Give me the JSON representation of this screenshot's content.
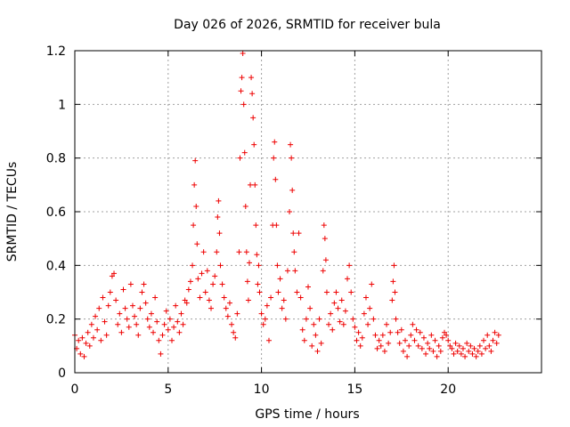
{
  "chart_data": {
    "type": "scatter",
    "title": "Day 026 of 2026, SRMTID for receiver bula",
    "xlabel": "GPS time / hours",
    "ylabel": "SRMTID / TECUs",
    "xlim": [
      0,
      25
    ],
    "ylim": [
      0,
      1.2
    ],
    "xticks": [
      0,
      5,
      10,
      15,
      20
    ],
    "xtick_labels": [
      "0",
      "5",
      "10",
      "15",
      "20"
    ],
    "yticks": [
      0,
      0.2,
      0.4,
      0.6,
      0.8,
      1.0,
      1.2
    ],
    "ytick_labels": [
      "0",
      "0.2",
      "0.4",
      "0.6",
      "0.8",
      "1",
      "1.2"
    ],
    "grid": true,
    "marker": "+",
    "series": [
      {
        "name": "SRMTID",
        "color": "#ee0000",
        "points": [
          [
            0.0,
            0.14
          ],
          [
            0.1,
            0.09
          ],
          [
            0.2,
            0.12
          ],
          [
            0.3,
            0.07
          ],
          [
            0.4,
            0.13
          ],
          [
            0.5,
            0.06
          ],
          [
            0.6,
            0.11
          ],
          [
            0.7,
            0.15
          ],
          [
            0.8,
            0.1
          ],
          [
            0.9,
            0.18
          ],
          [
            1.0,
            0.13
          ],
          [
            1.1,
            0.21
          ],
          [
            1.2,
            0.16
          ],
          [
            1.3,
            0.24
          ],
          [
            1.4,
            0.12
          ],
          [
            1.5,
            0.28
          ],
          [
            1.6,
            0.19
          ],
          [
            1.7,
            0.14
          ],
          [
            1.8,
            0.25
          ],
          [
            1.9,
            0.3
          ],
          [
            2.0,
            0.36
          ],
          [
            2.1,
            0.37
          ],
          [
            2.2,
            0.27
          ],
          [
            2.3,
            0.18
          ],
          [
            2.4,
            0.22
          ],
          [
            2.5,
            0.15
          ],
          [
            2.6,
            0.31
          ],
          [
            2.7,
            0.24
          ],
          [
            2.8,
            0.2
          ],
          [
            2.9,
            0.17
          ],
          [
            3.0,
            0.33
          ],
          [
            3.1,
            0.25
          ],
          [
            3.2,
            0.21
          ],
          [
            3.3,
            0.18
          ],
          [
            3.4,
            0.14
          ],
          [
            3.5,
            0.24
          ],
          [
            3.6,
            0.3
          ],
          [
            3.7,
            0.33
          ],
          [
            3.8,
            0.26
          ],
          [
            3.9,
            0.2
          ],
          [
            4.0,
            0.17
          ],
          [
            4.1,
            0.22
          ],
          [
            4.2,
            0.15
          ],
          [
            4.3,
            0.28
          ],
          [
            4.4,
            0.19
          ],
          [
            4.5,
            0.12
          ],
          [
            4.6,
            0.07
          ],
          [
            4.7,
            0.14
          ],
          [
            4.8,
            0.18
          ],
          [
            4.9,
            0.23
          ],
          [
            5.0,
            0.16
          ],
          [
            5.1,
            0.2
          ],
          [
            5.2,
            0.12
          ],
          [
            5.3,
            0.17
          ],
          [
            5.4,
            0.25
          ],
          [
            5.5,
            0.19
          ],
          [
            5.6,
            0.15
          ],
          [
            5.7,
            0.22
          ],
          [
            5.8,
            0.18
          ],
          [
            5.9,
            0.27
          ],
          [
            6.0,
            0.26
          ],
          [
            6.1,
            0.31
          ],
          [
            6.2,
            0.34
          ],
          [
            6.3,
            0.4
          ],
          [
            6.35,
            0.55
          ],
          [
            6.4,
            0.7
          ],
          [
            6.45,
            0.79
          ],
          [
            6.5,
            0.62
          ],
          [
            6.55,
            0.48
          ],
          [
            6.6,
            0.35
          ],
          [
            6.7,
            0.28
          ],
          [
            6.8,
            0.37
          ],
          [
            6.9,
            0.45
          ],
          [
            7.0,
            0.3
          ],
          [
            7.1,
            0.38
          ],
          [
            7.2,
            0.27
          ],
          [
            7.3,
            0.24
          ],
          [
            7.4,
            0.33
          ],
          [
            7.5,
            0.36
          ],
          [
            7.6,
            0.45
          ],
          [
            7.65,
            0.58
          ],
          [
            7.7,
            0.64
          ],
          [
            7.75,
            0.52
          ],
          [
            7.8,
            0.4
          ],
          [
            7.9,
            0.33
          ],
          [
            8.0,
            0.28
          ],
          [
            8.1,
            0.24
          ],
          [
            8.2,
            0.21
          ],
          [
            8.3,
            0.26
          ],
          [
            8.4,
            0.18
          ],
          [
            8.5,
            0.15
          ],
          [
            8.6,
            0.13
          ],
          [
            8.7,
            0.22
          ],
          [
            8.8,
            0.45
          ],
          [
            8.85,
            0.8
          ],
          [
            8.9,
            1.05
          ],
          [
            8.95,
            1.1
          ],
          [
            9.0,
            1.19
          ],
          [
            9.05,
            1.0
          ],
          [
            9.1,
            0.82
          ],
          [
            9.15,
            0.62
          ],
          [
            9.2,
            0.45
          ],
          [
            9.25,
            0.34
          ],
          [
            9.3,
            0.27
          ],
          [
            9.35,
            0.41
          ],
          [
            9.4,
            0.7
          ],
          [
            9.45,
            1.1
          ],
          [
            9.5,
            1.04
          ],
          [
            9.55,
            0.95
          ],
          [
            9.6,
            0.85
          ],
          [
            9.65,
            0.7
          ],
          [
            9.7,
            0.55
          ],
          [
            9.75,
            0.44
          ],
          [
            9.8,
            0.33
          ],
          [
            9.85,
            0.4
          ],
          [
            9.9,
            0.3
          ],
          [
            10.0,
            0.22
          ],
          [
            10.1,
            0.18
          ],
          [
            10.2,
            0.2
          ],
          [
            10.3,
            0.25
          ],
          [
            10.4,
            0.12
          ],
          [
            10.5,
            0.28
          ],
          [
            10.6,
            0.55
          ],
          [
            10.65,
            0.8
          ],
          [
            10.7,
            0.86
          ],
          [
            10.75,
            0.72
          ],
          [
            10.8,
            0.55
          ],
          [
            10.85,
            0.4
          ],
          [
            10.9,
            0.3
          ],
          [
            11.0,
            0.35
          ],
          [
            11.1,
            0.24
          ],
          [
            11.2,
            0.27
          ],
          [
            11.3,
            0.2
          ],
          [
            11.4,
            0.38
          ],
          [
            11.5,
            0.6
          ],
          [
            11.55,
            0.85
          ],
          [
            11.6,
            0.8
          ],
          [
            11.65,
            0.68
          ],
          [
            11.7,
            0.52
          ],
          [
            11.75,
            0.45
          ],
          [
            11.8,
            0.38
          ],
          [
            11.9,
            0.3
          ],
          [
            12.0,
            0.52
          ],
          [
            12.1,
            0.28
          ],
          [
            12.2,
            0.16
          ],
          [
            12.3,
            0.12
          ],
          [
            12.4,
            0.2
          ],
          [
            12.5,
            0.32
          ],
          [
            12.6,
            0.24
          ],
          [
            12.7,
            0.1
          ],
          [
            12.8,
            0.18
          ],
          [
            12.9,
            0.14
          ],
          [
            13.0,
            0.08
          ],
          [
            13.1,
            0.2
          ],
          [
            13.2,
            0.11
          ],
          [
            13.3,
            0.38
          ],
          [
            13.35,
            0.55
          ],
          [
            13.4,
            0.5
          ],
          [
            13.45,
            0.42
          ],
          [
            13.5,
            0.3
          ],
          [
            13.6,
            0.18
          ],
          [
            13.7,
            0.22
          ],
          [
            13.8,
            0.16
          ],
          [
            13.9,
            0.26
          ],
          [
            14.0,
            0.3
          ],
          [
            14.1,
            0.24
          ],
          [
            14.2,
            0.19
          ],
          [
            14.3,
            0.27
          ],
          [
            14.4,
            0.18
          ],
          [
            14.5,
            0.23
          ],
          [
            14.6,
            0.35
          ],
          [
            14.7,
            0.4
          ],
          [
            14.8,
            0.3
          ],
          [
            14.9,
            0.2
          ],
          [
            15.0,
            0.17
          ],
          [
            15.1,
            0.12
          ],
          [
            15.2,
            0.15
          ],
          [
            15.3,
            0.1
          ],
          [
            15.4,
            0.13
          ],
          [
            15.5,
            0.22
          ],
          [
            15.6,
            0.28
          ],
          [
            15.7,
            0.18
          ],
          [
            15.8,
            0.24
          ],
          [
            15.9,
            0.33
          ],
          [
            16.0,
            0.2
          ],
          [
            16.1,
            0.14
          ],
          [
            16.2,
            0.09
          ],
          [
            16.3,
            0.12
          ],
          [
            16.4,
            0.1
          ],
          [
            16.5,
            0.14
          ],
          [
            16.6,
            0.08
          ],
          [
            16.7,
            0.18
          ],
          [
            16.8,
            0.11
          ],
          [
            16.9,
            0.15
          ],
          [
            17.0,
            0.27
          ],
          [
            17.05,
            0.34
          ],
          [
            17.1,
            0.4
          ],
          [
            17.15,
            0.3
          ],
          [
            17.2,
            0.2
          ],
          [
            17.3,
            0.15
          ],
          [
            17.4,
            0.11
          ],
          [
            17.5,
            0.16
          ],
          [
            17.6,
            0.08
          ],
          [
            17.7,
            0.12
          ],
          [
            17.8,
            0.06
          ],
          [
            17.9,
            0.1
          ],
          [
            18.0,
            0.14
          ],
          [
            18.1,
            0.18
          ],
          [
            18.2,
            0.12
          ],
          [
            18.3,
            0.16
          ],
          [
            18.4,
            0.1
          ],
          [
            18.5,
            0.15
          ],
          [
            18.6,
            0.09
          ],
          [
            18.7,
            0.13
          ],
          [
            18.8,
            0.07
          ],
          [
            18.9,
            0.11
          ],
          [
            19.0,
            0.09
          ],
          [
            19.1,
            0.14
          ],
          [
            19.2,
            0.08
          ],
          [
            19.3,
            0.12
          ],
          [
            19.4,
            0.06
          ],
          [
            19.5,
            0.1
          ],
          [
            19.6,
            0.08
          ],
          [
            19.7,
            0.13
          ],
          [
            19.8,
            0.15
          ],
          [
            19.9,
            0.14
          ],
          [
            20.0,
            0.12
          ],
          [
            20.1,
            0.1
          ],
          [
            20.2,
            0.09
          ],
          [
            20.3,
            0.07
          ],
          [
            20.4,
            0.11
          ],
          [
            20.5,
            0.08
          ],
          [
            20.6,
            0.1
          ],
          [
            20.7,
            0.07
          ],
          [
            20.8,
            0.09
          ],
          [
            20.9,
            0.06
          ],
          [
            21.0,
            0.11
          ],
          [
            21.1,
            0.08
          ],
          [
            21.2,
            0.1
          ],
          [
            21.3,
            0.07
          ],
          [
            21.4,
            0.09
          ],
          [
            21.5,
            0.06
          ],
          [
            21.6,
            0.08
          ],
          [
            21.7,
            0.1
          ],
          [
            21.8,
            0.07
          ],
          [
            21.9,
            0.12
          ],
          [
            22.0,
            0.09
          ],
          [
            22.1,
            0.14
          ],
          [
            22.2,
            0.1
          ],
          [
            22.3,
            0.08
          ],
          [
            22.4,
            0.12
          ],
          [
            22.5,
            0.15
          ],
          [
            22.6,
            0.11
          ],
          [
            22.7,
            0.14
          ]
        ]
      }
    ]
  }
}
